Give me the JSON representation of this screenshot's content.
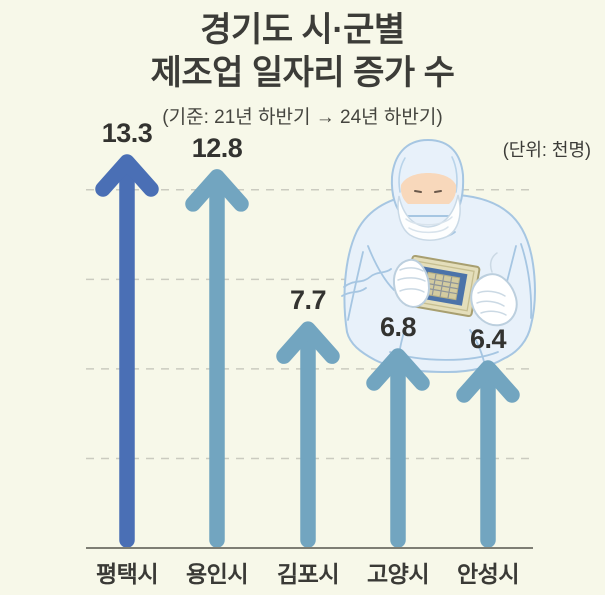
{
  "header": {
    "title_line1": "경기도 시·군별",
    "title_line2": "제조업 일자리 증가 수",
    "subtitle": "(기준: 21년 하반기 → 24년 하반기)"
  },
  "chart_data": {
    "type": "bar",
    "title": "경기도 시·군별 제조업 일자리 증가 수",
    "subtitle": "(기준: 21년 하반기 → 24년 하반기)",
    "unit_label": "(단위: 천명)",
    "categories": [
      "평택시",
      "용인시",
      "김포시",
      "고양시",
      "안성시"
    ],
    "values": [
      13.3,
      12.8,
      7.7,
      6.8,
      6.4
    ],
    "bar_colors": [
      "#4A6FB5",
      "#72A5C0",
      "#72A5C0",
      "#72A5C0",
      "#72A5C0"
    ],
    "ylim": [
      0,
      14
    ],
    "gridline_values": [
      3,
      6,
      9,
      12
    ],
    "grid_style": "dashed",
    "legend": "none",
    "bar_style": "upward-arrows",
    "illustration": "cleanroom-worker-holding-semiconductor-chip"
  },
  "colors": {
    "background": "#F7F8E9",
    "title_text": "#3C3C38",
    "value_text": "#333330",
    "axis_line": "#7E7E74",
    "gridline": "#CBCBC0",
    "primary_arrow": "#4A6FB5",
    "secondary_arrow": "#72A5C0"
  }
}
